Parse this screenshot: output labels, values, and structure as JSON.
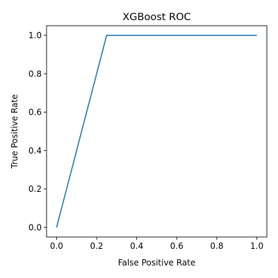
{
  "chart_data": {
    "type": "line",
    "title": "XGBoost ROC",
    "xlabel": "False Positive Rate",
    "ylabel": "True Positive Rate",
    "xlim": [
      -0.05,
      1.05
    ],
    "ylim": [
      -0.05,
      1.05
    ],
    "xticks": [
      0.0,
      0.2,
      0.4,
      0.6,
      0.8,
      1.0
    ],
    "yticks": [
      0.0,
      0.2,
      0.4,
      0.6,
      0.8,
      1.0
    ],
    "xtick_labels": [
      "0.0",
      "0.2",
      "0.4",
      "0.6",
      "0.8",
      "1.0"
    ],
    "ytick_labels": [
      "0.0",
      "0.2",
      "0.4",
      "0.6",
      "0.8",
      "1.0"
    ],
    "grid": false,
    "legend": "none",
    "series": [
      {
        "color": "#1f77b4",
        "x": [
          0.0,
          0.25,
          1.0
        ],
        "y": [
          0.0,
          1.0,
          1.0
        ]
      }
    ]
  }
}
